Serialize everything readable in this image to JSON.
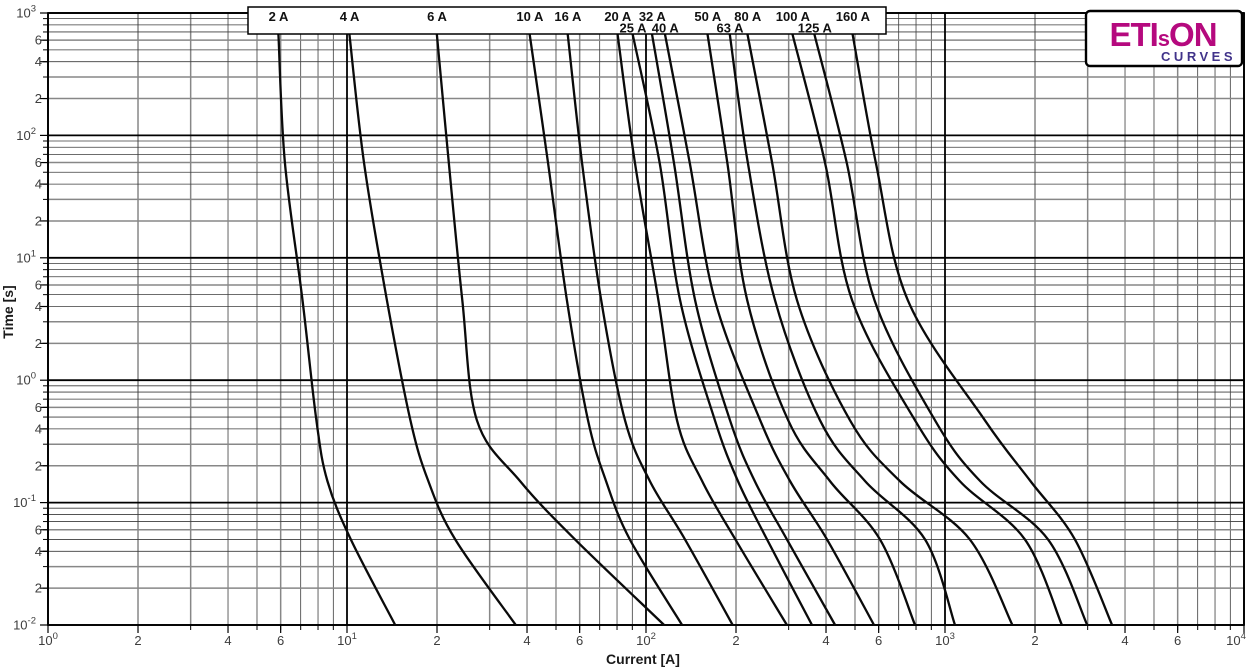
{
  "logo": {
    "brand_eti": "ETI",
    "brand_s": "s",
    "brand_on": "ON",
    "subtitle": "CURVES",
    "brand_color": "#b5097e",
    "subtitle_color": "#41338a",
    "border_color": "#000000"
  },
  "chart_data": {
    "type": "line",
    "scale": "log-log",
    "grid": true,
    "legend_position": "top",
    "curve_color": "#0a0a0a",
    "x_axis": {
      "title": "Current [A]",
      "range": [
        1,
        10000
      ],
      "ticks": [
        {
          "v": 1,
          "label": "10",
          "exp": "0"
        },
        {
          "v": 2,
          "label": "2"
        },
        {
          "v": 4,
          "label": "4"
        },
        {
          "v": 6,
          "label": "6"
        },
        {
          "v": 10,
          "label": "10",
          "exp": "1"
        },
        {
          "v": 20,
          "label": "2"
        },
        {
          "v": 40,
          "label": "4"
        },
        {
          "v": 60,
          "label": "6"
        },
        {
          "v": 100,
          "label": "10",
          "exp": "2"
        },
        {
          "v": 200,
          "label": "2"
        },
        {
          "v": 400,
          "label": "4"
        },
        {
          "v": 600,
          "label": "6"
        },
        {
          "v": 1000,
          "label": "10",
          "exp": "3"
        },
        {
          "v": 2000,
          "label": "2"
        },
        {
          "v": 4000,
          "label": "4"
        },
        {
          "v": 6000,
          "label": "6"
        },
        {
          "v": 10000,
          "label": "10",
          "exp": "4"
        }
      ]
    },
    "y_axis": {
      "title": "Time [s]",
      "range": [
        0.01,
        1000
      ],
      "ticks": [
        {
          "v": 1000,
          "label": "10",
          "exp": "3"
        },
        {
          "v": 600,
          "label": "6"
        },
        {
          "v": 400,
          "label": "4"
        },
        {
          "v": 200,
          "label": "2"
        },
        {
          "v": 100,
          "label": "10",
          "exp": "2"
        },
        {
          "v": 60,
          "label": "6"
        },
        {
          "v": 40,
          "label": "4"
        },
        {
          "v": 20,
          "label": "2"
        },
        {
          "v": 10,
          "label": "10",
          "exp": "1"
        },
        {
          "v": 6,
          "label": "6"
        },
        {
          "v": 4,
          "label": "4"
        },
        {
          "v": 2,
          "label": "2"
        },
        {
          "v": 1,
          "label": "10",
          "exp": "0"
        },
        {
          "v": 0.6,
          "label": "6"
        },
        {
          "v": 0.4,
          "label": "4"
        },
        {
          "v": 0.2,
          "label": "2"
        },
        {
          "v": 0.1,
          "label": "10",
          "exp": "-1"
        },
        {
          "v": 0.06,
          "label": "6"
        },
        {
          "v": 0.04,
          "label": "4"
        },
        {
          "v": 0.02,
          "label": "2"
        },
        {
          "v": 0.01,
          "label": "10",
          "exp": "-2"
        }
      ]
    },
    "times_s": [
      650,
      60,
      4.5,
      0.47,
      0.15,
      0.05,
      0.01
    ],
    "series": [
      {
        "label": "2 A",
        "rating": 2,
        "label_row": 1,
        "currents": [
          5.9,
          6.2,
          7.1,
          7.9,
          8.6,
          10.3,
          14.5
        ]
      },
      {
        "label": "4 A",
        "rating": 4,
        "label_row": 1,
        "currents": [
          10.2,
          11.4,
          13.6,
          16.3,
          18.7,
          23.0,
          36.7
        ]
      },
      {
        "label": "6 A",
        "rating": 6,
        "label_row": 1,
        "currents": [
          20.0,
          21.9,
          24.3,
          27.2,
          37.9,
          57.9,
          115
        ]
      },
      {
        "label": "10 A",
        "rating": 10,
        "label_row": 1,
        "currents": [
          40.9,
          47.0,
          54.4,
          64.0,
          73.5,
          88.3,
          132
        ]
      },
      {
        "label": "16 A",
        "rating": 16,
        "label_row": 1,
        "currents": [
          54.8,
          61.1,
          70.8,
          85.1,
          103,
          135,
          195
        ]
      },
      {
        "label": "20 A",
        "rating": 20,
        "label_row": 1,
        "currents": [
          80.5,
          91.8,
          110,
          127,
          154,
          199,
          296
        ]
      },
      {
        "label": "25 A",
        "rating": 25,
        "label_row": 2,
        "currents": [
          90.5,
          111,
          130,
          170,
          203,
          254,
          359
        ]
      },
      {
        "label": "32 A",
        "rating": 32,
        "label_row": 1,
        "currents": [
          105,
          124,
          146,
          191,
          231,
          296,
          429
        ]
      },
      {
        "label": "40 A",
        "rating": 40,
        "label_row": 2,
        "currents": [
          116,
          140,
          170,
          241,
          303,
          403,
          579
        ]
      },
      {
        "label": "50 A",
        "rating": 50,
        "label_row": 1,
        "currents": [
          161,
          187,
          218,
          299,
          412,
          606,
          794
        ]
      },
      {
        "label": "63 A",
        "rating": 63,
        "label_row": 2,
        "currents": [
          191,
          219,
          270,
          382,
          540,
          857,
          1080
        ]
      },
      {
        "label": "80 A",
        "rating": 80,
        "label_row": 1,
        "currents": [
          219,
          264,
          320,
          481,
          706,
          1210,
          1680
        ]
      },
      {
        "label": "100 A",
        "rating": 100,
        "label_row": 1,
        "currents": [
          310,
          397,
          489,
          794,
          1120,
          1850,
          2460
        ]
      },
      {
        "label": "125 A",
        "rating": 125,
        "label_row": 2,
        "currents": [
          367,
          469,
          581,
          926,
          1310,
          2210,
          2990
        ]
      },
      {
        "label": "160 A",
        "rating": 160,
        "label_row": 1,
        "currents": [
          492,
          587,
          751,
          1360,
          1930,
          2720,
          3620
        ]
      }
    ]
  }
}
